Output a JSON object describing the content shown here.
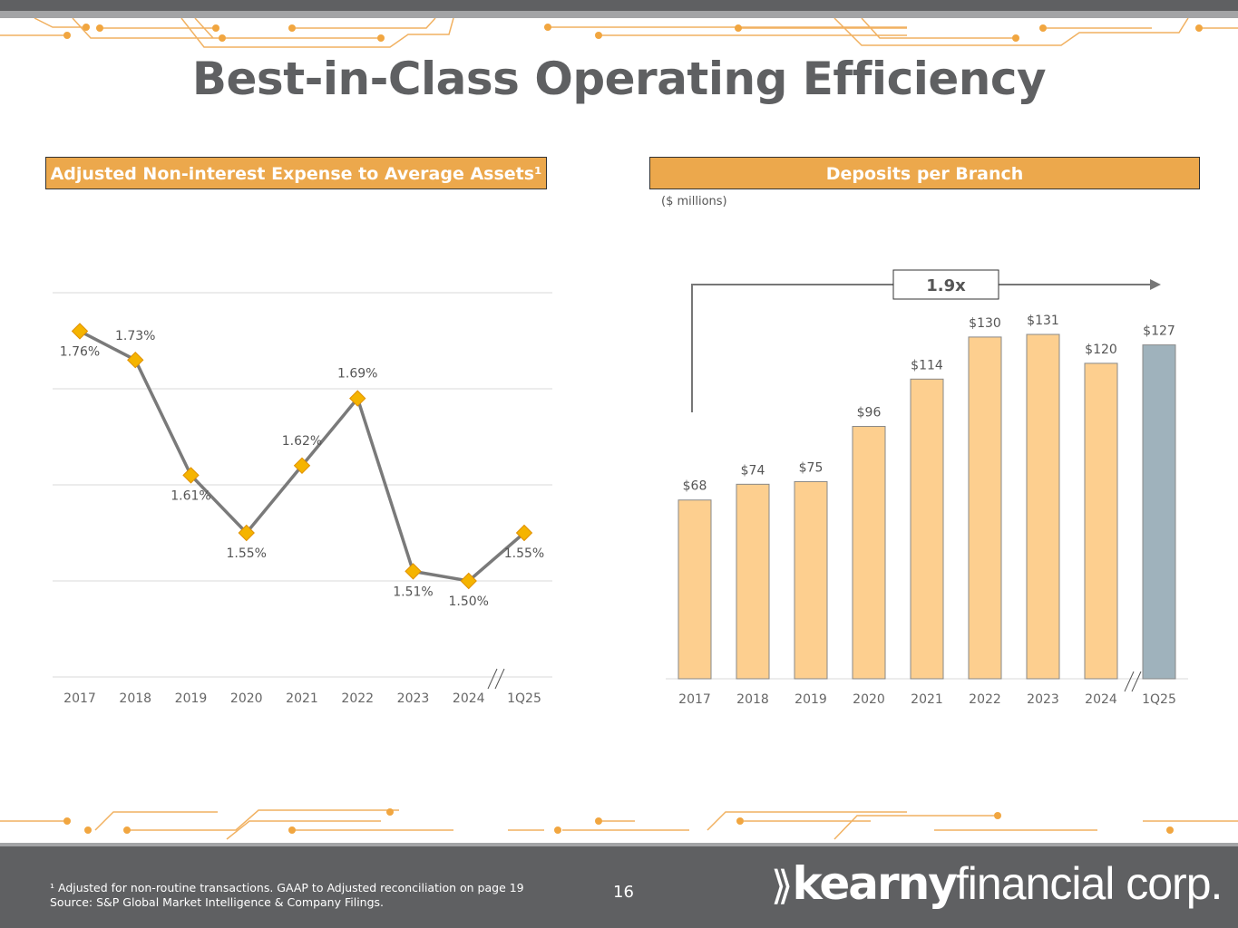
{
  "title": "Best-in-Class Operating Efficiency",
  "footnote1": "¹ Adjusted for non-routine transactions. GAAP to Adjusted reconciliation on page 19",
  "footnote2": "Source: S&P Global Market Intelligence & Company Filings.",
  "page_number": "16",
  "logo": {
    "bold": "kearny",
    "light": "financial corp."
  },
  "colors": {
    "accent": "#eca84c",
    "bar": "#fdcf8f",
    "bar_highlight": "#9fb2bc",
    "line": "#7a7a7a",
    "marker": "#f5b400",
    "footer": "#5f6062"
  },
  "chart_data": [
    {
      "type": "line",
      "title": "Adjusted Non-interest Expense to Average Assets¹",
      "categories": [
        "2017",
        "2018",
        "2019",
        "2020",
        "2021",
        "2022",
        "2023",
        "2024",
        "1Q25"
      ],
      "values": [
        1.76,
        1.73,
        1.61,
        1.55,
        1.62,
        1.69,
        1.51,
        1.5,
        1.55
      ],
      "labels": [
        "1.76%",
        "1.73%",
        "1.61%",
        "1.55%",
        "1.62%",
        "1.69%",
        "1.51%",
        "1.50%",
        "1.55%"
      ],
      "ylim": [
        1.4,
        1.8
      ],
      "grid": true
    },
    {
      "type": "bar",
      "title": "Deposits per Branch",
      "unit_note": "($ millions)",
      "categories": [
        "2017",
        "2018",
        "2019",
        "2020",
        "2021",
        "2022",
        "2023",
        "2024",
        "1Q25"
      ],
      "values": [
        68,
        74,
        75,
        96,
        114,
        130,
        131,
        120,
        127
      ],
      "labels": [
        "$68",
        "$74",
        "$75",
        "$96",
        "$114",
        "$130",
        "$131",
        "$120",
        "$127"
      ],
      "ylim": [
        0,
        131
      ],
      "annotation": "1.9x"
    }
  ]
}
